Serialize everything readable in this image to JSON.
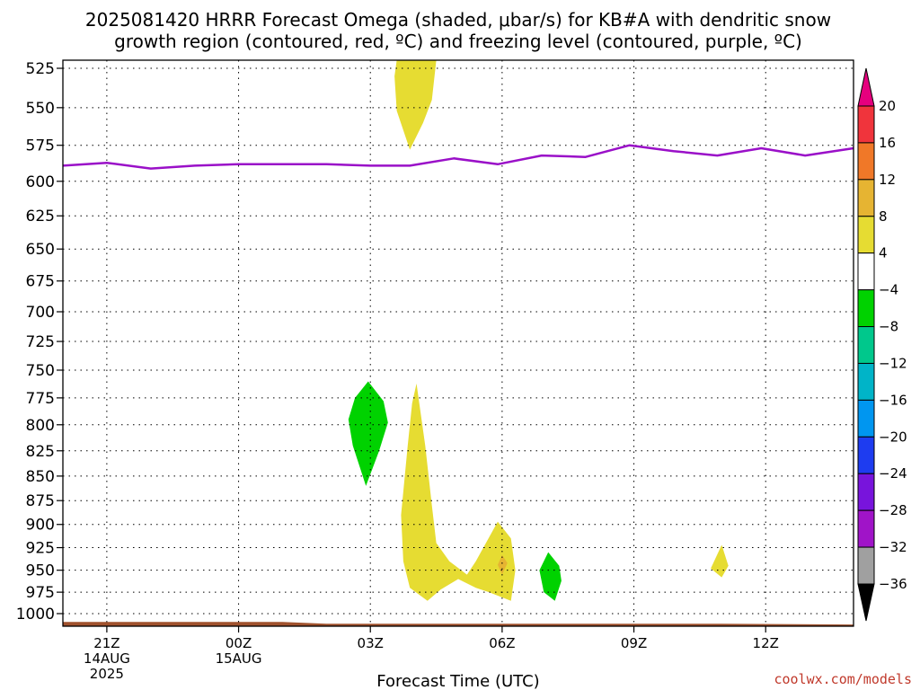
{
  "chart_data": {
    "type": "heatmap",
    "title_lines": [
      "2025081420 HRRR Forecast Omega (shaded, μbar/s) for KB#A with dendritic snow",
      "growth region (contoured, red, ºC) and freezing level (contoured, purple, ºC)"
    ],
    "xlabel": "Forecast Time (UTC)",
    "xlim": [
      -1,
      17
    ],
    "ylim": [
      520,
      1015
    ],
    "y_scale": "log-pressure (inverted)",
    "y_ticks": [
      525,
      550,
      575,
      600,
      625,
      650,
      675,
      700,
      725,
      750,
      775,
      800,
      825,
      850,
      875,
      900,
      925,
      950,
      975,
      1000
    ],
    "x_ticks": [
      {
        "x": 0,
        "lines": [
          "21Z",
          "14AUG",
          "2025"
        ]
      },
      {
        "x": 3,
        "lines": [
          "00Z",
          "15AUG"
        ]
      },
      {
        "x": 6,
        "lines": [
          "03Z"
        ]
      },
      {
        "x": 9,
        "lines": [
          "06Z"
        ]
      },
      {
        "x": 12,
        "lines": [
          "09Z"
        ]
      },
      {
        "x": 15,
        "lines": [
          "12Z"
        ]
      }
    ],
    "grid": true,
    "freezing_level": {
      "color": "#9a10c8",
      "points": [
        [
          -1,
          589
        ],
        [
          0,
          587
        ],
        [
          1,
          591
        ],
        [
          2,
          589
        ],
        [
          3,
          588
        ],
        [
          4,
          588
        ],
        [
          5,
          588
        ],
        [
          6,
          589
        ],
        [
          6.9,
          589
        ],
        [
          7.9,
          584
        ],
        [
          8.9,
          588
        ],
        [
          9.9,
          582
        ],
        [
          10.9,
          583
        ],
        [
          11.9,
          575
        ],
        [
          12.9,
          579
        ],
        [
          13.9,
          582
        ],
        [
          14.9,
          577
        ],
        [
          15.9,
          582
        ],
        [
          17,
          577
        ]
      ]
    },
    "terrain": {
      "color": "#a0522d",
      "points": [
        [
          -1,
          1010
        ],
        [
          4,
          1010
        ],
        [
          5,
          1012
        ],
        [
          14,
          1012
        ],
        [
          17,
          1013
        ]
      ]
    },
    "shaded_regions": [
      {
        "label": "4 to 8",
        "color": "#e6dc32",
        "points": [
          [
            6.6,
            520
          ],
          [
            7.5,
            520
          ],
          [
            7.4,
            545
          ],
          [
            7.2,
            560
          ],
          [
            6.9,
            578
          ],
          [
            6.6,
            552
          ],
          [
            6.55,
            530
          ]
        ]
      },
      {
        "label": "-8 to -4",
        "color": "#00d200",
        "points": [
          [
            5.95,
            760
          ],
          [
            6.3,
            778
          ],
          [
            6.4,
            798
          ],
          [
            6.2,
            825
          ],
          [
            5.9,
            860
          ],
          [
            5.6,
            820
          ],
          [
            5.5,
            795
          ],
          [
            5.65,
            775
          ]
        ]
      },
      {
        "label": "4 to 8",
        "color": "#e6dc32",
        "points": [
          [
            7.05,
            762
          ],
          [
            7.25,
            820
          ],
          [
            7.4,
            880
          ],
          [
            7.5,
            920
          ],
          [
            7.8,
            940
          ],
          [
            8.2,
            955
          ],
          [
            8.4,
            940
          ],
          [
            8.9,
            897
          ],
          [
            9.2,
            915
          ],
          [
            9.3,
            950
          ],
          [
            9.2,
            985
          ],
          [
            8.7,
            975
          ],
          [
            8.4,
            970
          ],
          [
            8.0,
            960
          ],
          [
            7.6,
            972
          ],
          [
            7.3,
            985
          ],
          [
            6.9,
            970
          ],
          [
            6.75,
            940
          ],
          [
            6.7,
            890
          ],
          [
            6.85,
            820
          ],
          [
            6.95,
            780
          ]
        ]
      },
      {
        "label": "8 to 12",
        "color": "#e6b432",
        "points": [
          [
            9.0,
            933
          ],
          [
            9.12,
            942
          ],
          [
            9.0,
            955
          ],
          [
            8.9,
            944
          ]
        ]
      },
      {
        "label": "-8 to -4",
        "color": "#00d200",
        "points": [
          [
            10.05,
            930
          ],
          [
            10.3,
            945
          ],
          [
            10.35,
            962
          ],
          [
            10.2,
            985
          ],
          [
            9.95,
            975
          ],
          [
            9.85,
            950
          ]
        ]
      },
      {
        "label": "4 to 8",
        "color": "#e6dc32",
        "points": [
          [
            14.0,
            922
          ],
          [
            14.15,
            945
          ],
          [
            14.0,
            958
          ],
          [
            13.75,
            948
          ]
        ]
      }
    ],
    "colorbar": {
      "labels": [
        "20",
        "16",
        "12",
        "8",
        "4",
        "−4",
        "−8",
        "−12",
        "−16",
        "−20",
        "−24",
        "−28",
        "−32",
        "−36"
      ],
      "colors": [
        "#e6007e",
        "#f0343c",
        "#f07828",
        "#e6b432",
        "#e6dc32",
        "#ffffff",
        "#00d200",
        "#00c88c",
        "#00b4c8",
        "#0096f0",
        "#1e3cf0",
        "#7814dc",
        "#a014c8",
        "#a0a0a0",
        "#000000"
      ]
    },
    "credit": "coolwx.com/models"
  }
}
